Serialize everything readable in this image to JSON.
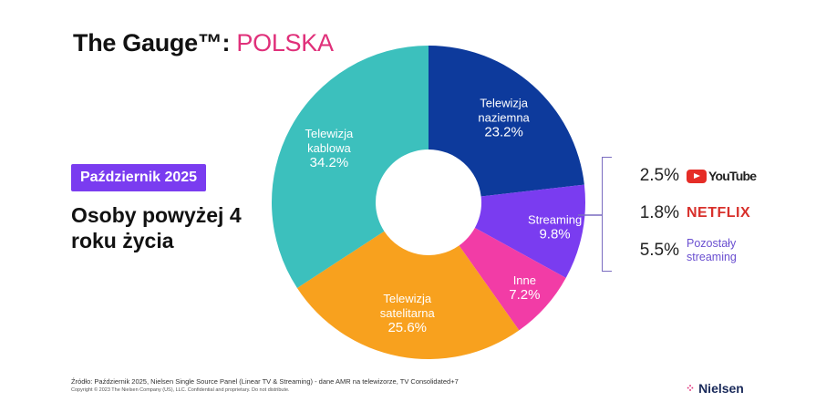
{
  "header": {
    "title": "The Gauge™:",
    "title_accent": "POLSKA"
  },
  "badge": "Październik 2025",
  "subtitle": "Osoby powyżej 4 roku życia",
  "chart_data": {
    "type": "pie",
    "variant": "donut",
    "slices": [
      {
        "label": "Telewizja naziemna",
        "value": 23.2,
        "display": "23.2%",
        "color": "#0d3a9c",
        "text": "#ffffff"
      },
      {
        "label": "Streaming",
        "value": 9.8,
        "display": "9.8%",
        "color": "#7a3cf0",
        "text": "#ffffff"
      },
      {
        "label": "Inne",
        "value": 7.2,
        "display": "7.2%",
        "color": "#f23ca6",
        "text": "#ffffff"
      },
      {
        "label": "Telewizja satelitarna",
        "value": 25.6,
        "display": "25.6%",
        "color": "#f8a11e",
        "text": "#ffffff"
      },
      {
        "label": "Telewizja kablowa",
        "value": 34.2,
        "display": "34.2%",
        "color": "#3cc0bd",
        "text": "#ffffff"
      }
    ]
  },
  "streaming_breakdown": [
    {
      "value": "2.5%",
      "label": "YouTube"
    },
    {
      "value": "1.8%",
      "label": "NETFLIX"
    },
    {
      "value": "5.5%",
      "label": "Pozostały streaming"
    }
  ],
  "footer": {
    "source": "Źródło: Październik 2025, Nielsen Single Source Panel (Linear TV & Streaming) - dane AMR na telewizorze, TV Consolidated+7",
    "copyright": "Copyright © 2023 The Nielsen Company (US), LLC. Confidential and proprietary. Do not distribute.",
    "logo": "Nielsen"
  }
}
